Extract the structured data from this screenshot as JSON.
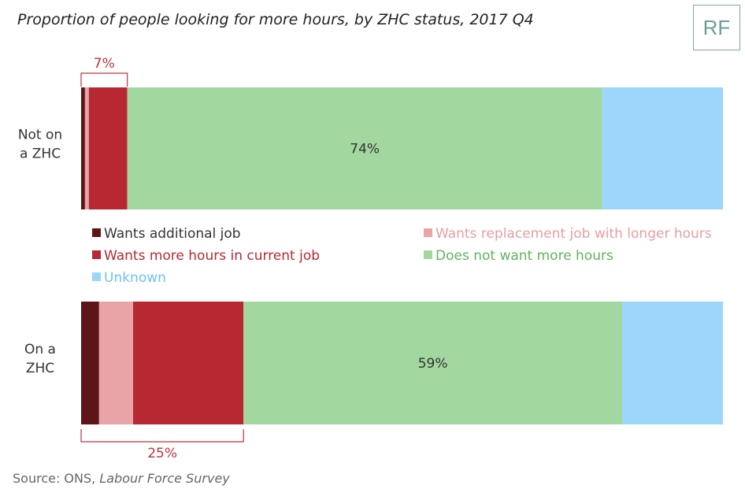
{
  "title": "Proportion of people looking for more hours, by ZHC status, 2017 Q4",
  "logo": "RF",
  "source": {
    "prefix": "Source: ONS, ",
    "italic": "Labour Force Survey"
  },
  "chart_data": {
    "type": "bar",
    "orientation": "horizontal",
    "stacked": true,
    "xlim": [
      0,
      100
    ],
    "grid": false,
    "legend_position": "between bars",
    "categories": [
      {
        "label": [
          "Not on",
          "a ZHC"
        ]
      },
      {
        "label": [
          "On a",
          "ZHC"
        ]
      }
    ],
    "series": [
      {
        "name": "Wants additional job",
        "color": "#5e1419",
        "values": [
          0.6,
          2.8
        ]
      },
      {
        "name": "Wants replacement job with longer hours",
        "color": "#e8a4a7",
        "values": [
          0.6,
          5.3
        ]
      },
      {
        "name": "Wants more hours in current job",
        "color": "#b82833",
        "values": [
          6.0,
          17.2
        ]
      },
      {
        "name": "Does not want more hours",
        "color": "#a3d7a0",
        "values": [
          74,
          59
        ]
      },
      {
        "name": "Unknown",
        "color": "#9dd6fb",
        "values": [
          18.8,
          15.7
        ]
      }
    ],
    "segment_labels": [
      {
        "bar": 0,
        "series": 3,
        "text": "74%"
      },
      {
        "bar": 1,
        "series": 3,
        "text": "59%"
      }
    ],
    "brace_labels": [
      {
        "bar": 0,
        "text": "7%",
        "position": "above"
      },
      {
        "bar": 1,
        "text": "25%",
        "position": "below"
      }
    ]
  }
}
